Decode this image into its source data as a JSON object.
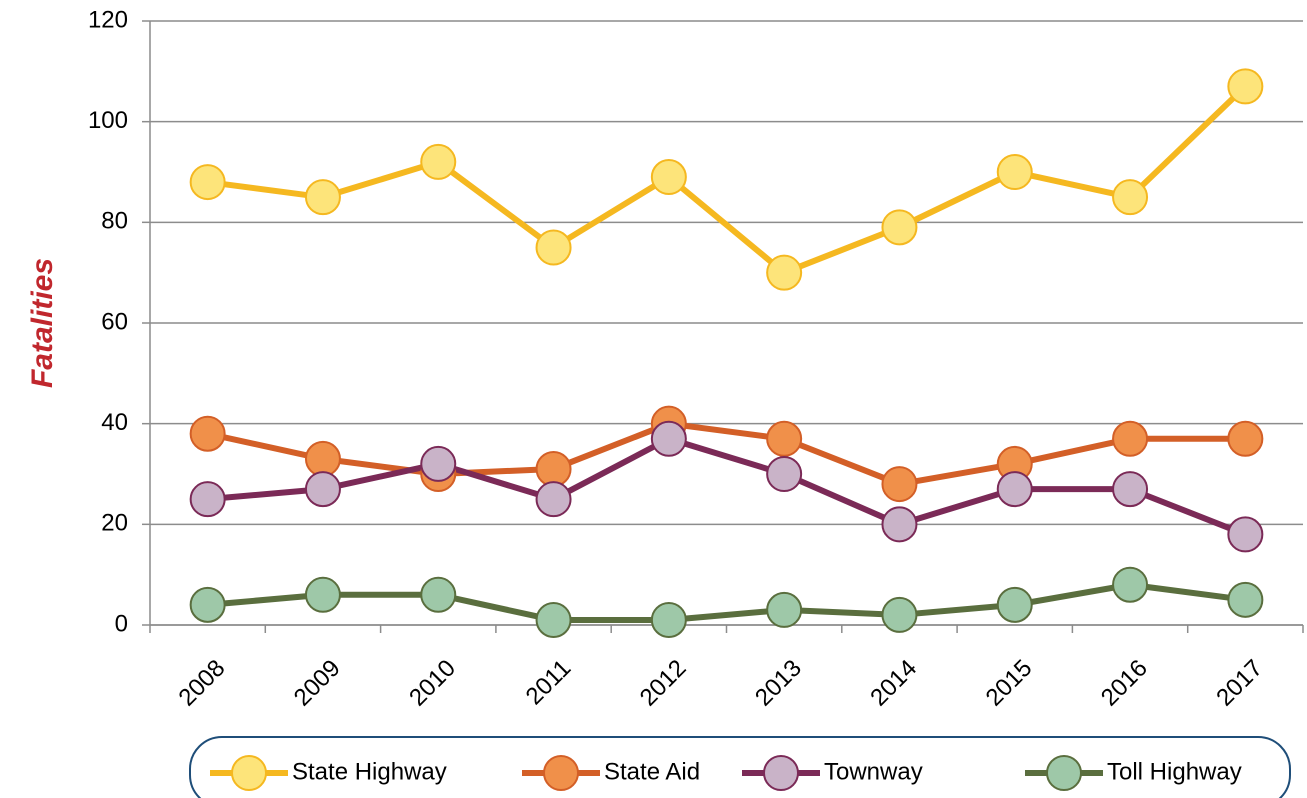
{
  "chart_data": {
    "type": "line",
    "axis_label_y": "Fatalities",
    "categories": [
      "2008",
      "2009",
      "2010",
      "2011",
      "2012",
      "2013",
      "2014",
      "2015",
      "2016",
      "2017"
    ],
    "series": [
      {
        "name": "State Highway",
        "color": "#f5b820",
        "marker_color": "#fde47a",
        "values": [
          88,
          85,
          92,
          75,
          89,
          70,
          79,
          90,
          85,
          107
        ]
      },
      {
        "name": "State Aid",
        "color": "#d35f27",
        "marker_color": "#f0904a",
        "values": [
          38,
          33,
          30,
          31,
          40,
          37,
          28,
          32,
          37,
          37
        ]
      },
      {
        "name": "Townway",
        "color": "#7b2a57",
        "marker_color": "#c9b3c8",
        "values": [
          25,
          27,
          32,
          25,
          37,
          30,
          20,
          27,
          27,
          18
        ]
      },
      {
        "name": "Toll Highway",
        "color": "#5a6e3e",
        "marker_color": "#9ec8a8",
        "values": [
          4,
          6,
          6,
          1,
          1,
          3,
          2,
          4,
          8,
          5
        ]
      }
    ],
    "ylim": [
      0,
      120
    ],
    "yticks": [
      0,
      20,
      40,
      60,
      80,
      100,
      120
    ],
    "grid": true,
    "legend": "bottom"
  }
}
